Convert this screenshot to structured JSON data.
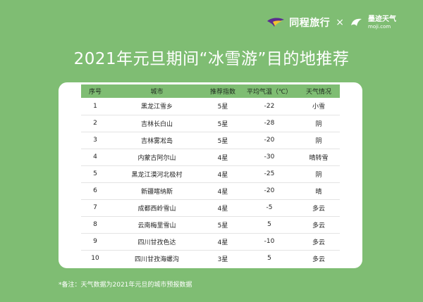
{
  "brand": {
    "tongcheng_name": "同程旅行",
    "separator": "×",
    "moji_name": "墨迹天气",
    "moji_domain": "moji.com"
  },
  "title": "2021年元旦期间“冰雪游”目的地推荐",
  "table": {
    "headers": [
      "序号",
      "城市",
      "推荐指数",
      "平均气温（℃）",
      "天气情况"
    ],
    "rows": [
      [
        "1",
        "黑龙江雪乡",
        "5星",
        "-22",
        "小雪"
      ],
      [
        "2",
        "吉林长白山",
        "5星",
        "-28",
        "阴"
      ],
      [
        "3",
        "吉林雾凇岛",
        "5星",
        "-20",
        "阴"
      ],
      [
        "4",
        "内蒙古阿尔山",
        "4星",
        "-30",
        "晴转雪"
      ],
      [
        "5",
        "黑龙江漠河北极村",
        "4星",
        "-25",
        "阴"
      ],
      [
        "6",
        "新疆喀纳斯",
        "4星",
        "-20",
        "晴"
      ],
      [
        "7",
        "成都西岭雪山",
        "4星",
        "-5",
        "多云"
      ],
      [
        "8",
        "云南梅里雪山",
        "5星",
        "5",
        "多云"
      ],
      [
        "9",
        "四川甘孜色达",
        "4星",
        "-10",
        "多云"
      ],
      [
        "10",
        "四川甘孜海螺沟",
        "3星",
        "5",
        "多云"
      ]
    ]
  },
  "note": "*备注：天气数据为2021年元旦的城市预报数据"
}
